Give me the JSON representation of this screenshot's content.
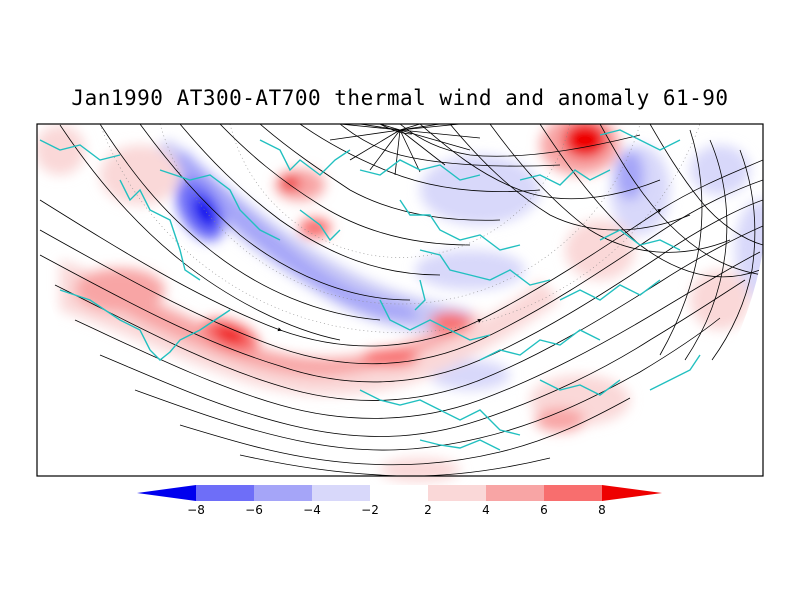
{
  "title": "Jan1990 AT300-AT700 thermal wind and anomaly 61-90",
  "colorbar": {
    "labels": [
      "-8",
      "-6",
      "-4",
      "-2",
      "2",
      "4",
      "6",
      "8"
    ],
    "colors": [
      "#0000ee",
      "#6e6ef8",
      "#a5a5f8",
      "#d8d8fa",
      "#ffffff",
      "#fad8d8",
      "#f8a5a5",
      "#f86e6e",
      "#ee0000"
    ]
  },
  "map": {
    "projection": "polar-stereographic-northern-hemisphere",
    "coastline_color": "#22c0c0",
    "streamline_color": "#000000",
    "positive_color": "#ee0000",
    "negative_color": "#0000ee"
  }
}
